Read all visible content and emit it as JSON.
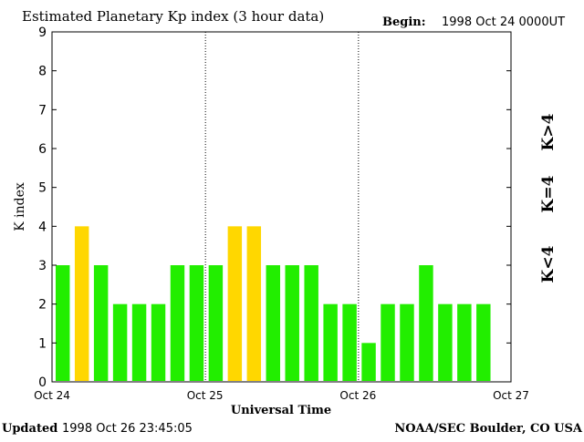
{
  "title": "Estimated Planetary Kp index (3 hour data)",
  "begin_label": "Begin:",
  "begin_value": "1998 Oct 24 0000UT",
  "ylabel": "K index",
  "xlabel": "Universal Time",
  "updated_label": "Updated",
  "updated_value": "1998 Oct 26 23:45:05",
  "credit": "NOAA/SEC Boulder, CO USA",
  "legend": [
    {
      "label": "K<4",
      "color": "#22ee00"
    },
    {
      "label": "K=4",
      "color": "#ffd700"
    },
    {
      "label": "K>4",
      "color": "#ee2200"
    }
  ],
  "colors": {
    "low": "#22ee00",
    "equal": "#ffd700",
    "high": "#ee2200"
  },
  "chart_data": {
    "type": "bar",
    "title": "Estimated Planetary Kp index (3 hour data)",
    "xlabel": "Universal Time",
    "ylabel": "K index",
    "ylim": [
      0,
      9
    ],
    "yticks": [
      "0",
      "1",
      "2",
      "3",
      "4",
      "5",
      "6",
      "7",
      "8",
      "9"
    ],
    "xticks": [
      "Oct 24",
      "Oct 25",
      "Oct 26",
      "Oct 27"
    ],
    "day_separators": [
      "Oct 25",
      "Oct 26"
    ],
    "grid": false,
    "categories": [
      "Oct 24 00",
      "Oct 24 03",
      "Oct 24 06",
      "Oct 24 09",
      "Oct 24 12",
      "Oct 24 15",
      "Oct 24 18",
      "Oct 24 21",
      "Oct 25 00",
      "Oct 25 03",
      "Oct 25 06",
      "Oct 25 09",
      "Oct 25 12",
      "Oct 25 15",
      "Oct 25 18",
      "Oct 25 21",
      "Oct 26 00",
      "Oct 26 03",
      "Oct 26 06",
      "Oct 26 09",
      "Oct 26 12",
      "Oct 26 15",
      "Oct 26 18",
      "Oct 26 21"
    ],
    "values": [
      3,
      4,
      3,
      2,
      2,
      2,
      3,
      3,
      3,
      4,
      4,
      3,
      3,
      3,
      2,
      2,
      1,
      2,
      2,
      3,
      2,
      2,
      2,
      0
    ]
  }
}
